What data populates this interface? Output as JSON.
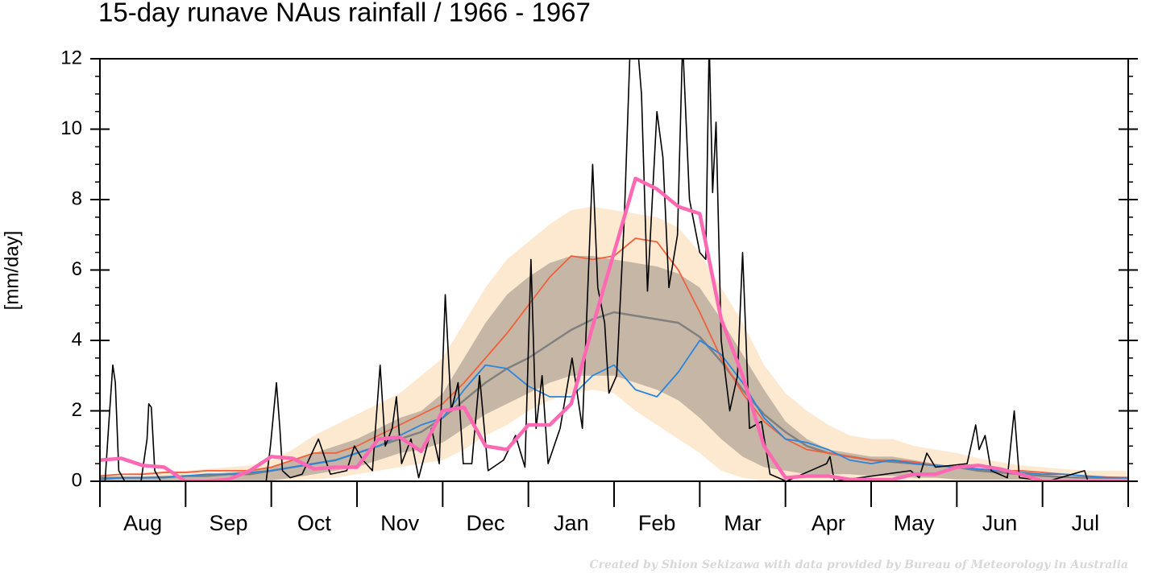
{
  "chart_data": {
    "type": "line",
    "title": "15-day runave NAus rainfall  /  1966 - 1967",
    "ylabel": "[mm/day]",
    "credit": "Created by Shion Sekizawa with data provided by Bureau of Meteorology in Australia",
    "categories": [
      "Aug",
      "Sep",
      "Oct",
      "Nov",
      "Dec",
      "Jan",
      "Feb",
      "Mar",
      "Apr",
      "May",
      "Jun",
      "Jul"
    ],
    "xlim": [
      0,
      12
    ],
    "xticks": [
      0,
      1,
      2,
      3,
      4,
      5,
      6,
      7,
      8,
      9,
      10,
      11,
      12
    ],
    "ylim": [
      0,
      12
    ],
    "yticks": [
      0,
      2,
      4,
      6,
      8,
      10,
      12
    ],
    "x": [
      0,
      0.25,
      0.5,
      0.75,
      1,
      1.25,
      1.5,
      1.75,
      2,
      2.25,
      2.5,
      2.75,
      3,
      3.25,
      3.5,
      3.75,
      4,
      4.25,
      4.5,
      4.75,
      5,
      5.25,
      5.5,
      5.75,
      6,
      6.25,
      6.5,
      6.75,
      7,
      7.25,
      7.5,
      7.75,
      8,
      8.25,
      8.5,
      8.75,
      9,
      9.25,
      9.5,
      9.75,
      10,
      10.25,
      10.5,
      10.75,
      11,
      11.25,
      11.5,
      11.75,
      12
    ],
    "bands": [
      {
        "color": "#fde8d0",
        "upper": [
          0.2,
          0.2,
          0.25,
          0.3,
          0.3,
          0.35,
          0.4,
          0.45,
          0.6,
          0.9,
          1.3,
          1.6,
          1.9,
          2.2,
          2.5,
          3.0,
          3.5,
          4.5,
          5.5,
          6.3,
          6.8,
          7.3,
          7.7,
          7.8,
          7.7,
          7.6,
          7.5,
          7.2,
          6.5,
          5.5,
          4.5,
          3.3,
          2.5,
          2.0,
          1.6,
          1.3,
          1.2,
          1.2,
          1.0,
          0.9,
          0.8,
          0.65,
          0.55,
          0.45,
          0.4,
          0.35,
          0.3,
          0.3,
          0.3
        ],
        "lower": [
          0,
          0,
          0,
          0,
          0,
          0,
          0,
          0,
          0,
          0,
          0.05,
          0.1,
          0.2,
          0.3,
          0.4,
          0.5,
          0.6,
          0.9,
          1.3,
          1.6,
          2.0,
          2.3,
          2.5,
          2.6,
          2.5,
          2.0,
          1.6,
          1.2,
          0.8,
          0.3,
          0.1,
          0,
          0,
          0,
          0,
          0,
          0,
          0,
          0,
          0,
          0,
          0,
          0,
          0,
          0,
          0,
          0,
          0,
          0
        ]
      },
      {
        "color": "#c6b6a5",
        "upper": [
          0.1,
          0.1,
          0.1,
          0.12,
          0.15,
          0.2,
          0.25,
          0.3,
          0.4,
          0.6,
          0.8,
          1.0,
          1.2,
          1.5,
          1.8,
          2.0,
          2.5,
          3.5,
          4.5,
          5.3,
          5.8,
          6.2,
          6.4,
          6.4,
          6.3,
          6.2,
          6.1,
          5.9,
          5.5,
          4.6,
          3.6,
          2.6,
          1.7,
          1.2,
          0.9,
          0.8,
          0.7,
          0.7,
          0.6,
          0.5,
          0.4,
          0.35,
          0.3,
          0.25,
          0.2,
          0.15,
          0.12,
          0.1,
          0.1
        ],
        "lower": [
          0.02,
          0.02,
          0.02,
          0.02,
          0.02,
          0.02,
          0.02,
          0.02,
          0.02,
          0.1,
          0.2,
          0.3,
          0.4,
          0.6,
          0.8,
          0.9,
          1.1,
          1.5,
          1.9,
          2.2,
          2.5,
          2.8,
          3.0,
          3.0,
          3.0,
          2.8,
          2.6,
          2.3,
          1.8,
          1.2,
          0.7,
          0.4,
          0.3,
          0.2,
          0.2,
          0.2,
          0.15,
          0.15,
          0.1,
          0.1,
          0.05,
          0.05,
          0.05,
          0.05,
          0.05,
          0.05,
          0.05,
          0.05,
          0.05
        ]
      }
    ],
    "series": [
      {
        "color": "#808080",
        "width": 2.5,
        "values": [
          0.1,
          0.1,
          0.1,
          0.12,
          0.15,
          0.15,
          0.2,
          0.2,
          0.3,
          0.4,
          0.5,
          0.6,
          0.8,
          1.0,
          1.2,
          1.4,
          1.8,
          2.3,
          2.8,
          3.2,
          3.5,
          3.9,
          4.3,
          4.6,
          4.8,
          4.7,
          4.6,
          4.5,
          4.1,
          3.4,
          2.6,
          1.9,
          1.4,
          1.0,
          0.8,
          0.7,
          0.6,
          0.55,
          0.5,
          0.45,
          0.4,
          0.3,
          0.25,
          0.2,
          0.15,
          0.12,
          0.1,
          0.1,
          0.1
        ]
      },
      {
        "color": "#f0603c",
        "width": 1.8,
        "values": [
          0.15,
          0.2,
          0.2,
          0.25,
          0.25,
          0.3,
          0.3,
          0.3,
          0.4,
          0.6,
          0.8,
          0.8,
          1.0,
          1.3,
          1.6,
          1.9,
          2.2,
          2.8,
          3.5,
          4.2,
          5.0,
          5.8,
          6.4,
          6.3,
          6.4,
          6.9,
          6.8,
          6.0,
          4.8,
          3.5,
          2.5,
          1.7,
          1.2,
          0.9,
          0.8,
          0.7,
          0.6,
          0.6,
          0.55,
          0.45,
          0.4,
          0.35,
          0.3,
          0.3,
          0.25,
          0.2,
          0.15,
          0.12,
          0.1
        ]
      },
      {
        "color": "#2a86dc",
        "width": 1.8,
        "values": [
          0.05,
          0.1,
          0.1,
          0.1,
          0.15,
          0.2,
          0.2,
          0.25,
          0.3,
          0.4,
          0.5,
          0.6,
          0.8,
          1.0,
          1.3,
          1.6,
          1.8,
          2.6,
          3.3,
          3.2,
          2.7,
          2.4,
          2.4,
          3.0,
          3.3,
          2.6,
          2.4,
          3.1,
          4.0,
          3.6,
          2.8,
          1.8,
          1.2,
          1.1,
          0.9,
          0.6,
          0.5,
          0.6,
          0.5,
          0.45,
          0.4,
          0.35,
          0.3,
          0.25,
          0.2,
          0.2,
          0.15,
          0.1,
          0.1
        ]
      },
      {
        "color": "#000000",
        "width": 1.6,
        "x": [
          0,
          0.06,
          0.1,
          0.15,
          0.18,
          0.22,
          0.29,
          0.48,
          0.55,
          0.57,
          0.6,
          0.64,
          0.71,
          1.94,
          1.99,
          2.06,
          2.1,
          2.13,
          2.22,
          2.36,
          2.55,
          2.69,
          2.88,
          2.97,
          3.07,
          3.18,
          3.27,
          3.33,
          3.41,
          3.46,
          3.52,
          3.63,
          3.72,
          3.87,
          3.96,
          4.03,
          4.1,
          4.18,
          4.24,
          4.34,
          4.43,
          4.53,
          4.71,
          4.85,
          4.96,
          5.03,
          5.09,
          5.16,
          5.23,
          5.37,
          5.51,
          5.63,
          5.75,
          5.81,
          5.89,
          5.94,
          6.03,
          6.12,
          6.19,
          6.27,
          6.32,
          6.39,
          6.5,
          6.57,
          6.64,
          6.74,
          6.8,
          6.88,
          7.0,
          7.07,
          7.11,
          7.15,
          7.19,
          7.25,
          7.35,
          7.44,
          7.5,
          7.58,
          7.72,
          7.82,
          8.01,
          8.48,
          8.52,
          8.57,
          9.46,
          9.56,
          9.65,
          9.75,
          10.12,
          10.22,
          10.26,
          10.33,
          10.4,
          10.59,
          10.67,
          10.73,
          11.06,
          11.49,
          11.53,
          12
        ],
        "values": [
          0,
          0,
          1.5,
          3.3,
          2.8,
          0.3,
          0,
          0,
          1.2,
          2.2,
          2.1,
          0.3,
          0,
          0,
          1.0,
          2.8,
          1.5,
          0.3,
          0.1,
          0.2,
          1.2,
          0.2,
          0.3,
          1.0,
          0.6,
          0.3,
          3.3,
          1.0,
          1.5,
          2.4,
          0.5,
          1.2,
          0.1,
          1.5,
          0.5,
          5.3,
          2.0,
          2.8,
          0.5,
          0.5,
          3.0,
          0.3,
          0.6,
          1.3,
          0.4,
          6.3,
          1.5,
          3.0,
          0.5,
          1.5,
          3.5,
          1.5,
          9.0,
          5.5,
          4.5,
          2.5,
          3.0,
          7.5,
          12.5,
          12.5,
          11.0,
          5.4,
          10.5,
          9.2,
          5.5,
          7.0,
          12.5,
          8.0,
          6.5,
          6.3,
          12.5,
          8.2,
          10.2,
          4.0,
          2.0,
          3.0,
          6.5,
          1.5,
          1.7,
          0.2,
          0,
          0.5,
          0.7,
          0,
          0.3,
          0.1,
          0.8,
          0.4,
          0.5,
          1.6,
          0.9,
          1.3,
          0.3,
          0.1,
          2.0,
          0.1,
          0,
          0.3,
          0,
          0
        ]
      },
      {
        "color": "#ff69b4",
        "width": 4.5,
        "values": [
          0.6,
          0.65,
          0.45,
          0.4,
          0,
          0,
          0.05,
          0.3,
          0.7,
          0.65,
          0.35,
          0.4,
          0.4,
          1.2,
          1.25,
          0.85,
          2.0,
          2.1,
          1.0,
          0.9,
          1.6,
          1.6,
          2.2,
          4.4,
          6.5,
          8.6,
          8.3,
          7.8,
          7.6,
          4.6,
          3.0,
          1.0,
          0.1,
          0.15,
          0.15,
          0.05,
          0.05,
          0.05,
          0.2,
          0.2,
          0.4,
          0.45,
          0.35,
          0.2,
          0,
          0,
          0,
          0,
          0
        ]
      }
    ]
  }
}
